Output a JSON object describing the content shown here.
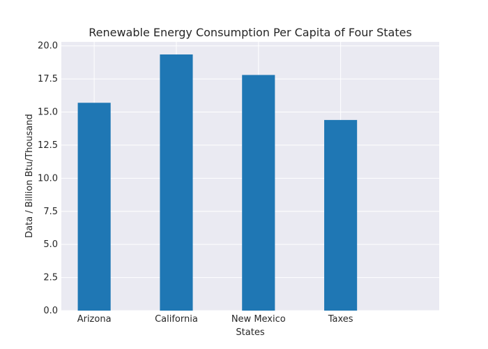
{
  "chart_data": {
    "type": "bar",
    "title": "Renewable Energy Consumption Per Capita of Four States",
    "xlabel": "States",
    "ylabel": "Data / Billion Btu/Thousand",
    "categories": [
      "Arizona",
      "California",
      "New Mexico",
      "Taxes"
    ],
    "values": [
      15.7,
      19.35,
      17.8,
      14.4
    ],
    "ylim": [
      0,
      20.3
    ],
    "yticks": [
      0.0,
      2.5,
      5.0,
      7.5,
      10.0,
      12.5,
      15.0,
      17.5,
      20.0
    ],
    "ytick_labels": [
      "0.0",
      "2.5",
      "5.0",
      "7.5",
      "10.0",
      "12.5",
      "15.0",
      "17.5",
      "20.0"
    ],
    "grid": true,
    "colors": {
      "bar": "#1f77b4",
      "plot_background": "#eaeaf2",
      "grid": "#ffffff"
    }
  }
}
